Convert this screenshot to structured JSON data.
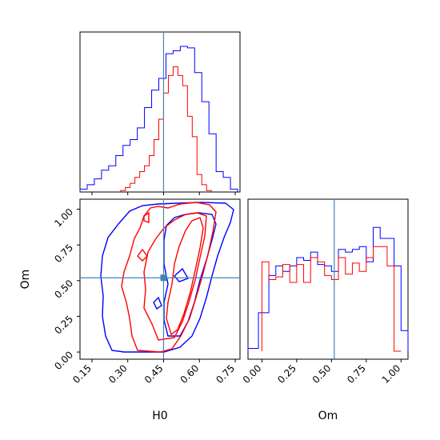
{
  "chart_data": {
    "type": "corner",
    "parameters": [
      "H0",
      "Om"
    ],
    "xlabel_h0": "H0",
    "xlabel_om": "Om",
    "ylabel_om": "Om",
    "h0_ticks": [
      "0.15",
      "0.30",
      "0.45",
      "0.60",
      "0.75"
    ],
    "h0_tick_values": [
      0.15,
      0.3,
      0.45,
      0.6,
      0.75
    ],
    "om_ticks": [
      "0.00",
      "0.25",
      "0.50",
      "0.75",
      "1.00"
    ],
    "om_tick_values": [
      0.0,
      0.25,
      0.5,
      0.75,
      1.0
    ],
    "h0_range": [
      0.1,
      0.77
    ],
    "om_range": [
      -0.05,
      1.07
    ],
    "om_hist_range": [
      -0.1,
      1.05
    ],
    "truth": {
      "H0": 0.45,
      "Om": 0.52
    },
    "colors": {
      "blue": "#0000ff",
      "red": "#ff0000",
      "truth": "#4682b4"
    },
    "h0_hist": {
      "bins": [
        0.1,
        0.13,
        0.16,
        0.19,
        0.22,
        0.25,
        0.28,
        0.31,
        0.34,
        0.37,
        0.4,
        0.43,
        0.46,
        0.49,
        0.52,
        0.55,
        0.58,
        0.61,
        0.64,
        0.67,
        0.7,
        0.73,
        0.76
      ],
      "blue": [
        0.02,
        0.05,
        0.09,
        0.15,
        0.18,
        0.25,
        0.32,
        0.36,
        0.44,
        0.58,
        0.7,
        0.78,
        0.95,
        0.97,
        1.0,
        0.99,
        0.82,
        0.62,
        0.4,
        0.14,
        0.1,
        0.02
      ],
      "red_bins": [
        0.27,
        0.29,
        0.31,
        0.33,
        0.35,
        0.37,
        0.39,
        0.41,
        0.43,
        0.45,
        0.47,
        0.49,
        0.51,
        0.53,
        0.55,
        0.57,
        0.59,
        0.61,
        0.63,
        0.65
      ],
      "red": [
        0.01,
        0.03,
        0.06,
        0.1,
        0.14,
        0.18,
        0.25,
        0.36,
        0.5,
        0.68,
        0.8,
        0.86,
        0.8,
        0.73,
        0.52,
        0.38,
        0.12,
        0.05,
        0.01
      ]
    },
    "om_hist": {
      "bins": [
        -0.1,
        -0.025,
        0.05,
        0.1,
        0.15,
        0.2,
        0.25,
        0.3,
        0.35,
        0.4,
        0.45,
        0.5,
        0.55,
        0.6,
        0.65,
        0.7,
        0.75,
        0.8,
        0.85,
        0.9,
        0.95,
        1.0,
        1.05
      ],
      "blue": [
        0.02,
        0.28,
        0.55,
        0.62,
        0.58,
        0.62,
        0.68,
        0.66,
        0.72,
        0.63,
        0.62,
        0.58,
        0.74,
        0.72,
        0.74,
        0.76,
        0.65,
        0.9,
        0.82,
        0.82,
        0.62,
        0.15
      ],
      "red_bins": [
        0.0,
        0.05,
        0.1,
        0.15,
        0.2,
        0.25,
        0.3,
        0.35,
        0.4,
        0.45,
        0.5,
        0.55,
        0.6,
        0.65,
        0.7,
        0.75,
        0.8,
        0.85,
        0.9,
        0.95,
        1.0
      ],
      "red": [
        0.65,
        0.52,
        0.54,
        0.63,
        0.5,
        0.63,
        0.5,
        0.68,
        0.65,
        0.55,
        0.52,
        0.68,
        0.56,
        0.64,
        0.58,
        0.68,
        0.76,
        0.76,
        0.62,
        0.0
      ]
    }
  }
}
